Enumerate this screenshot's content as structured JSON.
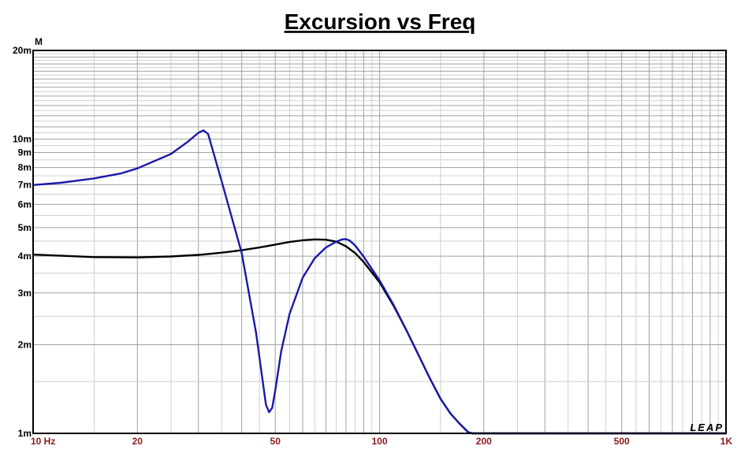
{
  "chart_data": {
    "type": "line",
    "title": "Excursion vs Freq",
    "ylabel": "M",
    "xscale": "log",
    "yscale": "log",
    "xlim": [
      10,
      1000
    ],
    "ylim": [
      0.001,
      0.02
    ],
    "grid": true,
    "legend": "none",
    "x_tick_labels": [
      {
        "value": 10,
        "label": "10  Hz"
      },
      {
        "value": 20,
        "label": "20"
      },
      {
        "value": 50,
        "label": "50"
      },
      {
        "value": 100,
        "label": "100"
      },
      {
        "value": 200,
        "label": "200"
      },
      {
        "value": 500,
        "label": "500"
      },
      {
        "value": 1000,
        "label": "1K"
      }
    ],
    "y_tick_labels": [
      {
        "value": 0.02,
        "label": "20m"
      },
      {
        "value": 0.01,
        "label": "10m"
      },
      {
        "value": 0.009,
        "label": "9m"
      },
      {
        "value": 0.008,
        "label": "8m"
      },
      {
        "value": 0.007,
        "label": "7m"
      },
      {
        "value": 0.006,
        "label": "6m"
      },
      {
        "value": 0.005,
        "label": "5m"
      },
      {
        "value": 0.004,
        "label": "4m"
      },
      {
        "value": 0.003,
        "label": "3m"
      },
      {
        "value": 0.002,
        "label": "2m"
      },
      {
        "value": 0.001,
        "label": "1m"
      }
    ],
    "series": [
      {
        "color": "#000000",
        "x": [
          10,
          15,
          20,
          25,
          30,
          35,
          40,
          45,
          50,
          55,
          60,
          65,
          70,
          75,
          80,
          85,
          90,
          100,
          110,
          120,
          130,
          140,
          150,
          160,
          170,
          180,
          185,
          200,
          300,
          500,
          1000
        ],
        "y": [
          0.00405,
          0.00397,
          0.00396,
          0.00399,
          0.00404,
          0.00411,
          0.00419,
          0.00428,
          0.00438,
          0.00447,
          0.00453,
          0.00456,
          0.00455,
          0.00448,
          0.00432,
          0.0041,
          0.00382,
          0.00326,
          0.0027,
          0.00222,
          0.00183,
          0.00153,
          0.00131,
          0.00117,
          0.00108,
          0.00101,
          0.001,
          0.001,
          0.001,
          0.001,
          0.001
        ]
      },
      {
        "color": "#1a1aaa",
        "x": [
          10,
          12,
          15,
          18,
          20,
          25,
          28,
          30,
          31,
          32,
          35,
          40,
          44,
          46,
          47,
          48,
          49,
          50,
          52,
          55,
          60,
          65,
          70,
          75,
          78,
          80,
          82,
          85,
          90,
          100,
          110,
          120,
          130,
          140,
          150,
          160,
          170,
          180,
          185,
          200,
          300,
          500,
          1000
        ],
        "y": [
          0.00698,
          0.0071,
          0.00735,
          0.00765,
          0.00795,
          0.0089,
          0.0098,
          0.0105,
          0.0107,
          0.0104,
          0.0072,
          0.0041,
          0.0022,
          0.0015,
          0.00125,
          0.00118,
          0.00122,
          0.0014,
          0.0019,
          0.00255,
          0.00338,
          0.00394,
          0.00428,
          0.00448,
          0.00456,
          0.00457,
          0.00452,
          0.00435,
          0.00398,
          0.00331,
          0.00272,
          0.00222,
          0.00183,
          0.00153,
          0.00131,
          0.00117,
          0.00108,
          0.00101,
          0.001,
          0.001,
          0.001,
          0.001,
          0.001
        ]
      }
    ]
  },
  "logo": "LEAP"
}
